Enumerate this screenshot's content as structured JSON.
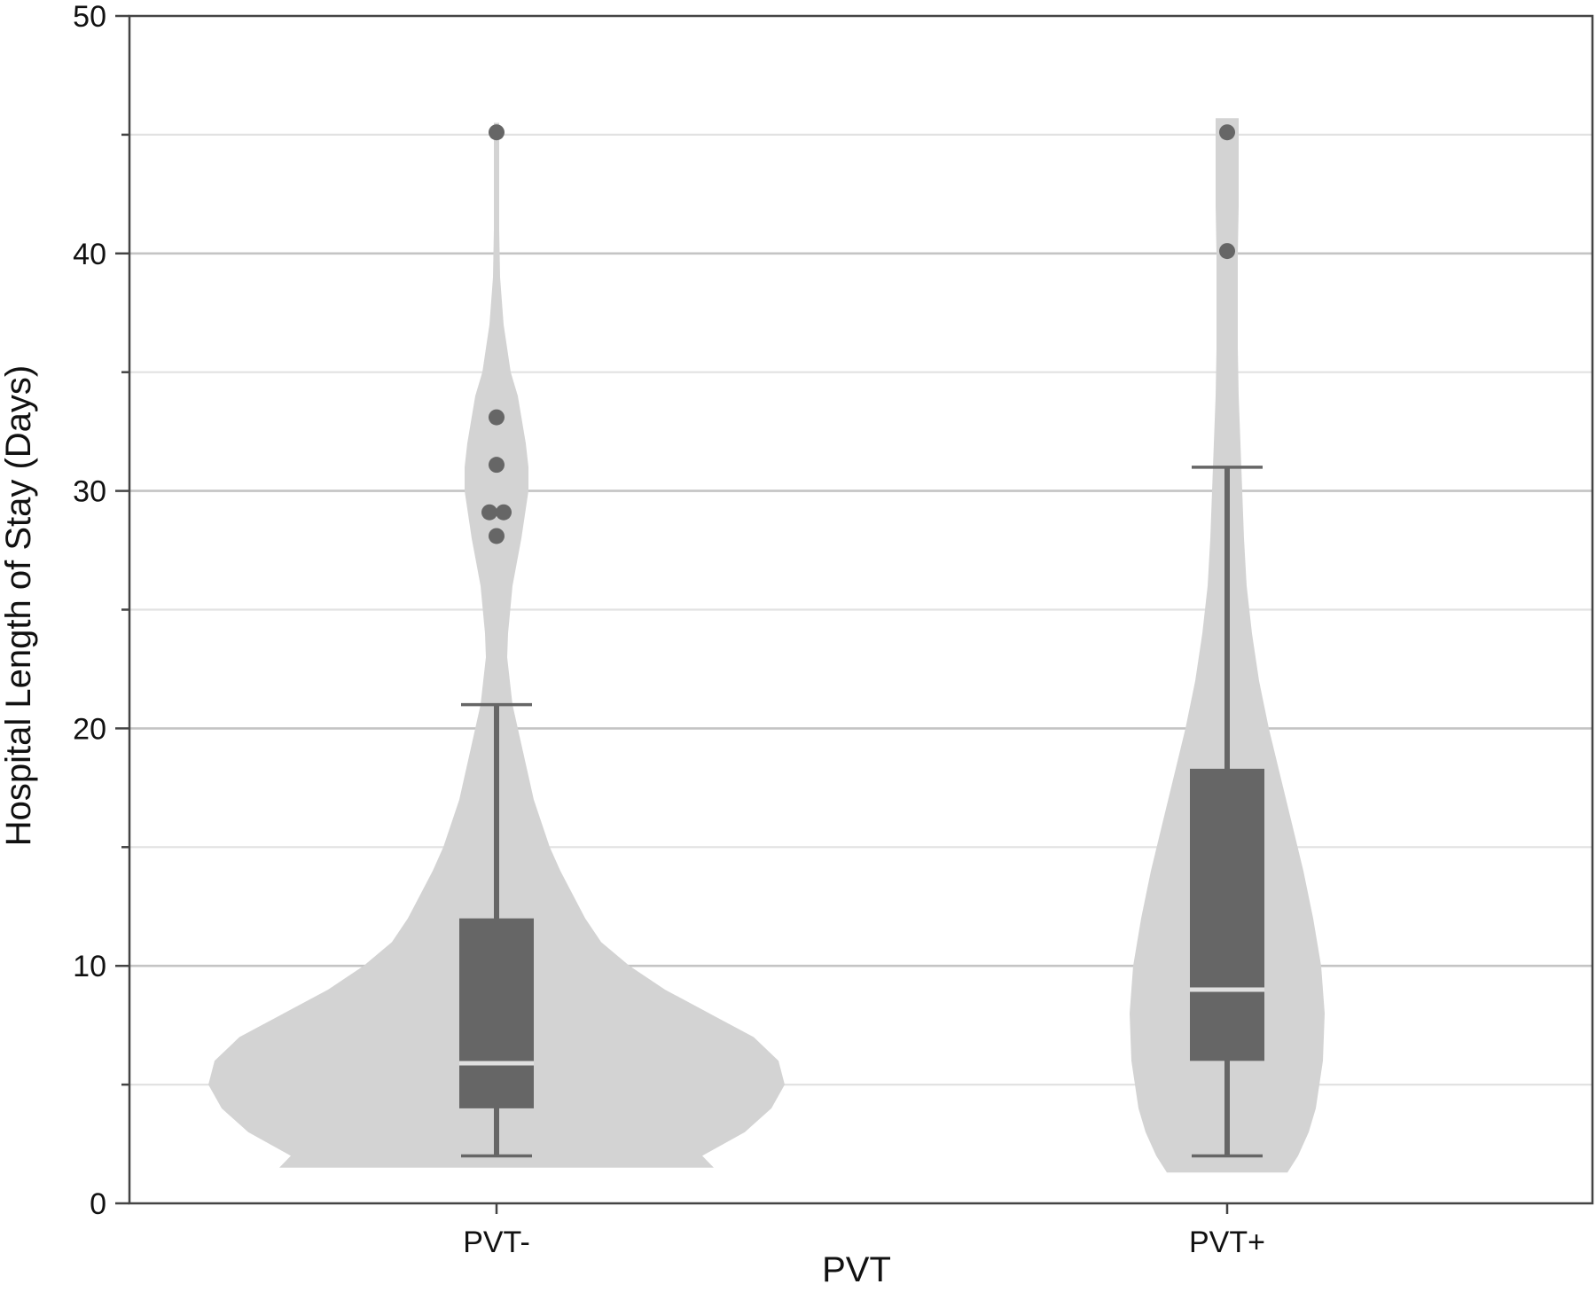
{
  "chart_data": {
    "type": "violin",
    "title": "",
    "xlabel": "PVT",
    "ylabel": "Hospital Length of Stay (Days)",
    "ylim": [
      0,
      50
    ],
    "yticks_major": [
      0,
      10,
      20,
      30,
      40,
      50
    ],
    "yticks_minor": [
      5,
      15,
      25,
      35,
      45
    ],
    "grid": true,
    "categories": [
      "PVT-",
      "PVT+"
    ],
    "series": [
      {
        "category": "PVT-",
        "violin_range": [
          1.5,
          45.5
        ],
        "density_halfwidth": [
          [
            1.5,
            245
          ],
          [
            2,
            232
          ],
          [
            3,
            280
          ],
          [
            4,
            310
          ],
          [
            5,
            325
          ],
          [
            6,
            318
          ],
          [
            7,
            290
          ],
          [
            8,
            240
          ],
          [
            9,
            190
          ],
          [
            10,
            150
          ],
          [
            11,
            118
          ],
          [
            12,
            100
          ],
          [
            13,
            86
          ],
          [
            14,
            72
          ],
          [
            15,
            60
          ],
          [
            17,
            42
          ],
          [
            19,
            30
          ],
          [
            21,
            18
          ],
          [
            23,
            12
          ],
          [
            24,
            13
          ],
          [
            26,
            18
          ],
          [
            28,
            28
          ],
          [
            30,
            36
          ],
          [
            31,
            36
          ],
          [
            32,
            33
          ],
          [
            34,
            24
          ],
          [
            35,
            16
          ],
          [
            37,
            8
          ],
          [
            39,
            4
          ],
          [
            41,
            3
          ],
          [
            43,
            3
          ],
          [
            45.5,
            3
          ]
        ],
        "whisker_low": 2,
        "q1": 4,
        "median": 5.9,
        "q3": 12,
        "whisker_high": 21,
        "outliers": [
          {
            "x": 0,
            "y": 28.1
          },
          {
            "x": -8,
            "y": 29.1
          },
          {
            "x": 8,
            "y": 29.1
          },
          {
            "x": 0,
            "y": 31.1
          },
          {
            "x": 0,
            "y": 33.1
          },
          {
            "x": 0,
            "y": 45.1
          }
        ]
      },
      {
        "category": "PVT+",
        "violin_range": [
          1.3,
          45.7
        ],
        "density_halfwidth": [
          [
            1.3,
            68
          ],
          [
            2,
            80
          ],
          [
            3,
            92
          ],
          [
            4,
            100
          ],
          [
            6,
            108
          ],
          [
            8,
            110
          ],
          [
            10,
            106
          ],
          [
            12,
            97
          ],
          [
            14,
            86
          ],
          [
            16,
            73
          ],
          [
            18,
            60
          ],
          [
            20,
            47
          ],
          [
            22,
            36
          ],
          [
            24,
            28
          ],
          [
            26,
            22
          ],
          [
            28,
            19
          ],
          [
            30,
            17
          ],
          [
            32,
            15
          ],
          [
            34,
            13
          ],
          [
            36,
            12
          ],
          [
            38,
            12
          ],
          [
            40,
            12
          ],
          [
            42,
            13
          ],
          [
            44,
            13
          ],
          [
            45.7,
            13
          ]
        ],
        "whisker_low": 2,
        "q1": 6,
        "median": 9,
        "q3": 18.3,
        "whisker_high": 31,
        "outliers": [
          {
            "x": 0,
            "y": 40.1
          },
          {
            "x": 0,
            "y": 45.1
          }
        ]
      }
    ],
    "colors": {
      "violin_fill": "#d3d3d3",
      "box_fill": "#666666",
      "whisker": "#666666",
      "median_line": "#e0e0e0",
      "outlier": "#666666",
      "grid_major": "#c4c4c4",
      "grid_minor": "#e2e2e2",
      "axis": "#444444"
    }
  }
}
